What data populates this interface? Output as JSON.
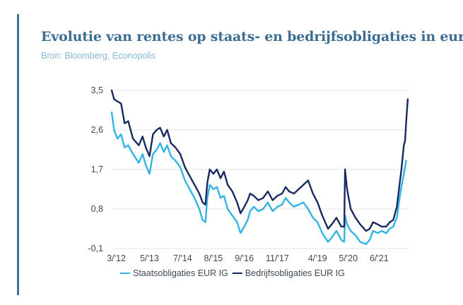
{
  "colors": {
    "accent": "#3f6f94",
    "title": "#3d6e91",
    "source": "#86b9d9",
    "series_light": "#33b3e6",
    "series_dark": "#1a2a60",
    "grid": "#e4e4e4"
  },
  "chart_data": {
    "type": "line",
    "title": "Evolutie van rentes op staats- en bedrijfsobligaties in euro",
    "subtitle": "Bron: Bloomberg, Econopolis",
    "xlabel": "",
    "ylabel": "",
    "ylim": [
      -0.1,
      3.5
    ],
    "xlim": [
      "2012-01-01",
      "2022-06-15"
    ],
    "yticks": [
      "3,5",
      "2,6",
      "1,7",
      "0,8",
      "-0,1"
    ],
    "ytick_values": [
      3.5,
      2.6,
      1.7,
      0.8,
      -0.1
    ],
    "xticks": [
      "3/'12",
      "5/'13",
      "7/'14",
      "8/'15",
      "9/'16",
      "11/'17",
      "4/'19",
      "5/'20",
      "6/'21"
    ],
    "xtick_values": [
      "2012-03-01",
      "2013-05-01",
      "2014-07-01",
      "2015-08-01",
      "2016-09-01",
      "2017-11-01",
      "2019-04-01",
      "2020-05-01",
      "2021-06-01"
    ],
    "grid": true,
    "legend": "bottom",
    "series": [
      {
        "name": "Staatsobligaties EUR IG",
        "color": "#33b3e6",
        "points": [
          [
            "2012-01-01",
            3.0
          ],
          [
            "2012-02-01",
            2.6
          ],
          [
            "2012-03-15",
            2.4
          ],
          [
            "2012-05-01",
            2.5
          ],
          [
            "2012-06-15",
            2.2
          ],
          [
            "2012-08-01",
            2.25
          ],
          [
            "2012-10-01",
            2.05
          ],
          [
            "2012-12-15",
            1.85
          ],
          [
            "2013-02-01",
            2.05
          ],
          [
            "2013-03-15",
            1.8
          ],
          [
            "2013-05-01",
            1.6
          ],
          [
            "2013-06-15",
            2.05
          ],
          [
            "2013-08-01",
            2.15
          ],
          [
            "2013-09-15",
            2.3
          ],
          [
            "2013-11-01",
            2.1
          ],
          [
            "2013-12-15",
            2.25
          ],
          [
            "2014-02-01",
            2.0
          ],
          [
            "2014-04-01",
            1.9
          ],
          [
            "2014-06-01",
            1.75
          ],
          [
            "2014-08-01",
            1.45
          ],
          [
            "2014-10-01",
            1.25
          ],
          [
            "2014-12-01",
            1.05
          ],
          [
            "2015-02-01",
            0.8
          ],
          [
            "2015-03-15",
            0.55
          ],
          [
            "2015-04-20",
            0.5
          ],
          [
            "2015-05-15",
            1.05
          ],
          [
            "2015-06-15",
            1.35
          ],
          [
            "2015-08-01",
            1.25
          ],
          [
            "2015-09-15",
            1.3
          ],
          [
            "2015-11-01",
            1.05
          ],
          [
            "2015-12-15",
            1.1
          ],
          [
            "2016-02-01",
            0.8
          ],
          [
            "2016-04-01",
            0.65
          ],
          [
            "2016-06-01",
            0.5
          ],
          [
            "2016-07-15",
            0.25
          ],
          [
            "2016-09-01",
            0.4
          ],
          [
            "2016-10-15",
            0.55
          ],
          [
            "2016-11-15",
            0.75
          ],
          [
            "2017-01-01",
            0.85
          ],
          [
            "2017-03-01",
            0.75
          ],
          [
            "2017-05-01",
            0.8
          ],
          [
            "2017-07-01",
            0.95
          ],
          [
            "2017-09-01",
            0.75
          ],
          [
            "2017-11-01",
            0.85
          ],
          [
            "2018-01-01",
            0.9
          ],
          [
            "2018-02-15",
            1.05
          ],
          [
            "2018-04-01",
            0.95
          ],
          [
            "2018-06-01",
            0.85
          ],
          [
            "2018-08-01",
            0.9
          ],
          [
            "2018-10-01",
            0.95
          ],
          [
            "2018-12-01",
            0.8
          ],
          [
            "2019-02-01",
            0.6
          ],
          [
            "2019-04-01",
            0.5
          ],
          [
            "2019-06-01",
            0.25
          ],
          [
            "2019-08-15",
            0.05
          ],
          [
            "2019-10-01",
            0.15
          ],
          [
            "2019-12-01",
            0.3
          ],
          [
            "2020-02-01",
            0.1
          ],
          [
            "2020-03-10",
            0.05
          ],
          [
            "2020-03-20",
            0.65
          ],
          [
            "2020-04-15",
            0.45
          ],
          [
            "2020-06-01",
            0.3
          ],
          [
            "2020-08-01",
            0.2
          ],
          [
            "2020-10-01",
            0.05
          ],
          [
            "2020-12-15",
            0.0
          ],
          [
            "2021-02-01",
            0.1
          ],
          [
            "2021-03-15",
            0.3
          ],
          [
            "2021-05-15",
            0.25
          ],
          [
            "2021-07-01",
            0.3
          ],
          [
            "2021-09-01",
            0.25
          ],
          [
            "2021-10-15",
            0.35
          ],
          [
            "2021-12-01",
            0.4
          ],
          [
            "2022-01-15",
            0.6
          ],
          [
            "2022-02-15",
            1.0
          ],
          [
            "2022-03-15",
            1.3
          ],
          [
            "2022-04-15",
            1.6
          ],
          [
            "2022-05-15",
            1.9
          ]
        ]
      },
      {
        "name": "Bedrijfsobligaties EUR IG",
        "color": "#1a2a60",
        "points": [
          [
            "2012-01-01",
            3.5
          ],
          [
            "2012-02-01",
            3.3
          ],
          [
            "2012-03-15",
            3.25
          ],
          [
            "2012-05-01",
            3.2
          ],
          [
            "2012-06-15",
            2.75
          ],
          [
            "2012-08-01",
            2.8
          ],
          [
            "2012-10-01",
            2.4
          ],
          [
            "2012-12-15",
            2.25
          ],
          [
            "2013-02-01",
            2.45
          ],
          [
            "2013-03-15",
            2.2
          ],
          [
            "2013-05-01",
            2.0
          ],
          [
            "2013-06-15",
            2.5
          ],
          [
            "2013-08-01",
            2.6
          ],
          [
            "2013-09-15",
            2.65
          ],
          [
            "2013-11-01",
            2.45
          ],
          [
            "2013-12-15",
            2.6
          ],
          [
            "2014-02-01",
            2.3
          ],
          [
            "2014-04-01",
            2.2
          ],
          [
            "2014-06-01",
            2.05
          ],
          [
            "2014-08-01",
            1.75
          ],
          [
            "2014-10-01",
            1.55
          ],
          [
            "2014-12-01",
            1.35
          ],
          [
            "2015-02-01",
            1.15
          ],
          [
            "2015-03-15",
            0.95
          ],
          [
            "2015-04-20",
            0.9
          ],
          [
            "2015-05-15",
            1.4
          ],
          [
            "2015-06-15",
            1.7
          ],
          [
            "2015-08-01",
            1.6
          ],
          [
            "2015-09-15",
            1.7
          ],
          [
            "2015-11-01",
            1.5
          ],
          [
            "2015-12-15",
            1.65
          ],
          [
            "2016-02-01",
            1.35
          ],
          [
            "2016-04-01",
            1.2
          ],
          [
            "2016-06-01",
            0.95
          ],
          [
            "2016-07-15",
            0.7
          ],
          [
            "2016-09-01",
            0.85
          ],
          [
            "2016-10-15",
            1.0
          ],
          [
            "2016-11-15",
            1.15
          ],
          [
            "2017-01-01",
            1.1
          ],
          [
            "2017-03-01",
            1.0
          ],
          [
            "2017-05-01",
            1.05
          ],
          [
            "2017-07-01",
            1.2
          ],
          [
            "2017-09-01",
            1.0
          ],
          [
            "2017-11-01",
            1.1
          ],
          [
            "2018-01-01",
            1.15
          ],
          [
            "2018-02-15",
            1.3
          ],
          [
            "2018-04-01",
            1.2
          ],
          [
            "2018-06-01",
            1.15
          ],
          [
            "2018-08-01",
            1.25
          ],
          [
            "2018-10-01",
            1.35
          ],
          [
            "2018-12-01",
            1.45
          ],
          [
            "2019-02-01",
            1.15
          ],
          [
            "2019-04-01",
            0.95
          ],
          [
            "2019-06-01",
            0.65
          ],
          [
            "2019-08-15",
            0.35
          ],
          [
            "2019-10-01",
            0.45
          ],
          [
            "2019-12-01",
            0.6
          ],
          [
            "2020-02-01",
            0.4
          ],
          [
            "2020-03-10",
            0.4
          ],
          [
            "2020-03-20",
            1.7
          ],
          [
            "2020-04-15",
            1.25
          ],
          [
            "2020-06-01",
            0.8
          ],
          [
            "2020-08-01",
            0.6
          ],
          [
            "2020-10-01",
            0.45
          ],
          [
            "2020-12-15",
            0.3
          ],
          [
            "2021-02-01",
            0.35
          ],
          [
            "2021-03-15",
            0.5
          ],
          [
            "2021-05-15",
            0.45
          ],
          [
            "2021-07-01",
            0.4
          ],
          [
            "2021-09-01",
            0.4
          ],
          [
            "2021-10-15",
            0.5
          ],
          [
            "2021-12-01",
            0.55
          ],
          [
            "2022-01-15",
            0.85
          ],
          [
            "2022-02-15",
            1.3
          ],
          [
            "2022-03-15",
            1.7
          ],
          [
            "2022-04-15",
            2.25
          ],
          [
            "2022-05-01",
            2.35
          ],
          [
            "2022-05-20",
            2.9
          ],
          [
            "2022-06-05",
            3.3
          ]
        ]
      }
    ]
  }
}
